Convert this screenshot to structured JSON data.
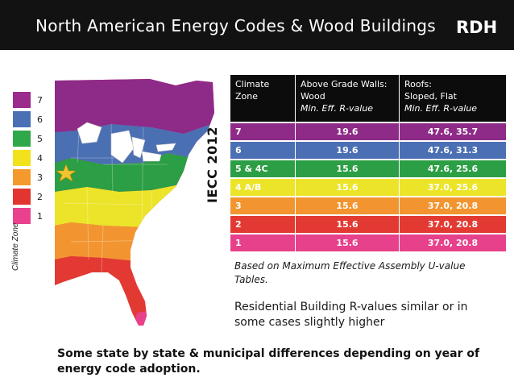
{
  "header": {
    "title": "North American Energy Codes & Wood Buildings",
    "logo": {
      "left": "R",
      "right": "H",
      "middle": "D"
    }
  },
  "legend": {
    "label": "Climate Zone",
    "items": [
      {
        "label": "7",
        "color": "#9b2b8c"
      },
      {
        "label": "6",
        "color": "#4a6fb5"
      },
      {
        "label": "5",
        "color": "#2fa84a"
      },
      {
        "label": "4",
        "color": "#f2e21c"
      },
      {
        "label": "3",
        "color": "#f49a2c"
      },
      {
        "label": "2",
        "color": "#e2352f"
      },
      {
        "label": "1",
        "color": "#e9418e"
      }
    ]
  },
  "iecc_label": "IECC 2012",
  "table": {
    "headers": [
      {
        "line1": "Climate",
        "line2": "Zone",
        "line3": ""
      },
      {
        "line1": "Above Grade Walls:",
        "line2": "Wood",
        "line3": "Min. Eff. R-value"
      },
      {
        "line1": "Roofs:",
        "line2": "Sloped, Flat",
        "line3": "Min. Eff. R-value"
      }
    ],
    "rows": [
      {
        "zone": "7",
        "walls": "19.6",
        "roofs": "47.6, 35.7",
        "color": "#8e2a87"
      },
      {
        "zone": "6",
        "walls": "19.6",
        "roofs": "47.6, 31.3",
        "color": "#4b6fb3"
      },
      {
        "zone": "5 & 4C",
        "walls": "15.6",
        "roofs": "47.6, 25.6",
        "color": "#2c9e45"
      },
      {
        "zone": "4 A/B",
        "walls": "15.6",
        "roofs": "37.0, 25.6",
        "color": "#ece428"
      },
      {
        "zone": "3",
        "walls": "15.6",
        "roofs": "37.0, 20.8",
        "color": "#f29530"
      },
      {
        "zone": "2",
        "walls": "15.6",
        "roofs": "37.0, 20.8",
        "color": "#e23a32"
      },
      {
        "zone": "1",
        "walls": "15.6",
        "roofs": "37.0, 20.8",
        "color": "#e6418a"
      }
    ]
  },
  "note": "Based on Maximum Effective Assembly U-value Tables.",
  "residential": "Residential Building R-values similar or in some cases slightly higher",
  "footer": "Some state by state & municipal differences depending on year of energy code adoption."
}
